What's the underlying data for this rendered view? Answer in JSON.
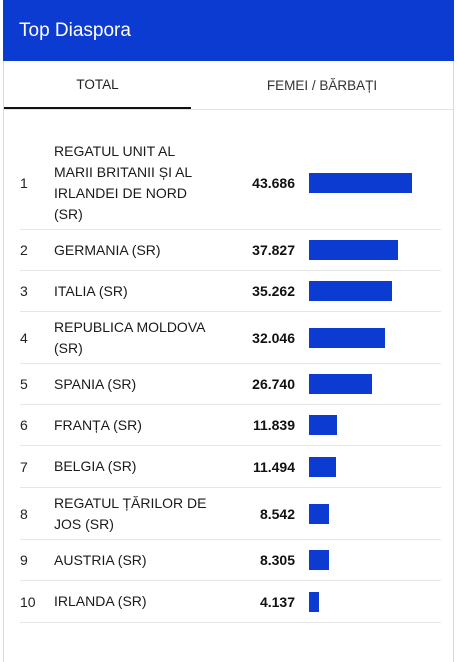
{
  "header": {
    "title": "Top Diaspora"
  },
  "tabs": [
    {
      "label": "TOTAL",
      "active": true
    },
    {
      "label": "FEMEI / BĂRBAȚI",
      "active": false
    }
  ],
  "colors": {
    "accent": "#0c3bd1"
  },
  "ranking": [
    {
      "rank": "1",
      "country": "REGATUL UNIT AL MARII BRITANII ȘI AL IRLANDEI DE NORD (SR)",
      "value": "43.686",
      "number": 43686
    },
    {
      "rank": "2",
      "country": "GERMANIA (SR)",
      "value": "37.827",
      "number": 37827
    },
    {
      "rank": "3",
      "country": "ITALIA (SR)",
      "value": "35.262",
      "number": 35262
    },
    {
      "rank": "4",
      "country": "REPUBLICA MOLDOVA (SR)",
      "value": "32.046",
      "number": 32046
    },
    {
      "rank": "5",
      "country": "SPANIA (SR)",
      "value": "26.740",
      "number": 26740
    },
    {
      "rank": "6",
      "country": "FRANȚA (SR)",
      "value": "11.839",
      "number": 11839
    },
    {
      "rank": "7",
      "country": "BELGIA (SR)",
      "value": "11.494",
      "number": 11494
    },
    {
      "rank": "8",
      "country": "REGATUL ȚĂRILOR DE JOS (SR)",
      "value": "8.542",
      "number": 8542
    },
    {
      "rank": "9",
      "country": "AUSTRIA (SR)",
      "value": "8.305",
      "number": 8305
    },
    {
      "rank": "10",
      "country": "IRLANDA (SR)",
      "value": "4.137",
      "number": 4137
    }
  ]
}
